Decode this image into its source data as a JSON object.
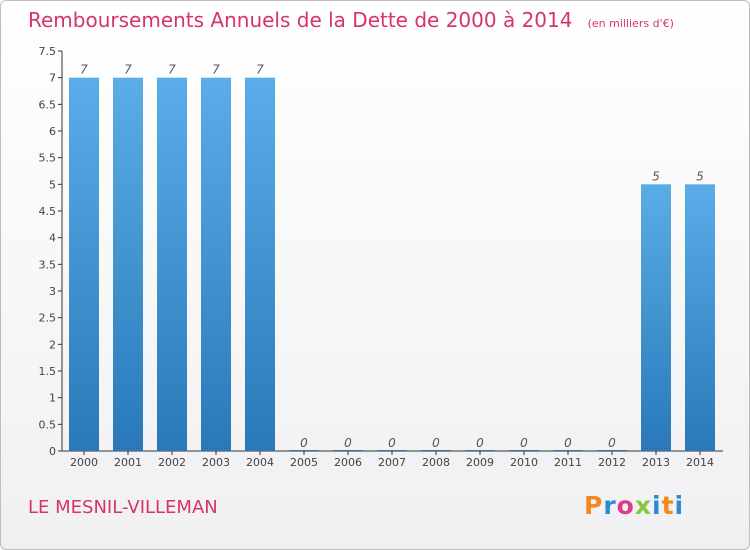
{
  "chart_data": {
    "type": "bar",
    "title": "Remboursements Annuels de la Dette de 2000 à 2014",
    "subtitle": "(en milliers d'€)",
    "categories": [
      "2000",
      "2001",
      "2002",
      "2003",
      "2004",
      "2005",
      "2006",
      "2007",
      "2008",
      "2009",
      "2010",
      "2011",
      "2012",
      "2013",
      "2014"
    ],
    "values": [
      7,
      7,
      7,
      7,
      7,
      0,
      0,
      0,
      0,
      0,
      0,
      0,
      0,
      5,
      5
    ],
    "value_labels": [
      "7",
      "7",
      "7",
      "7",
      "7",
      "0",
      "0",
      "0",
      "0",
      "0",
      "0",
      "0",
      "0",
      "5",
      "5"
    ],
    "ylim": [
      0,
      7.5
    ],
    "yticks": [
      "0",
      "0.5",
      "1",
      "1.5",
      "2",
      "2.5",
      "3",
      "3.5",
      "4",
      "4.5",
      "5",
      "5.5",
      "6",
      "6.5",
      "7",
      "7.5"
    ],
    "grid": false,
    "bar_color_top": "#5aade8",
    "bar_color_bottom": "#2a78b8"
  },
  "commune": "LE MESNIL-VILLEMAN",
  "logo": {
    "letters": [
      "P",
      "r",
      "o",
      "x",
      "i",
      "t",
      "i"
    ],
    "colors": [
      "#f08a1c",
      "#2a8bd2",
      "#e03a8a",
      "#8cc63f",
      "#2a8bd2",
      "#f08a1c",
      "#2a8bd2"
    ]
  },
  "colors": {
    "title": "#d6336c",
    "axis": "#333333"
  }
}
